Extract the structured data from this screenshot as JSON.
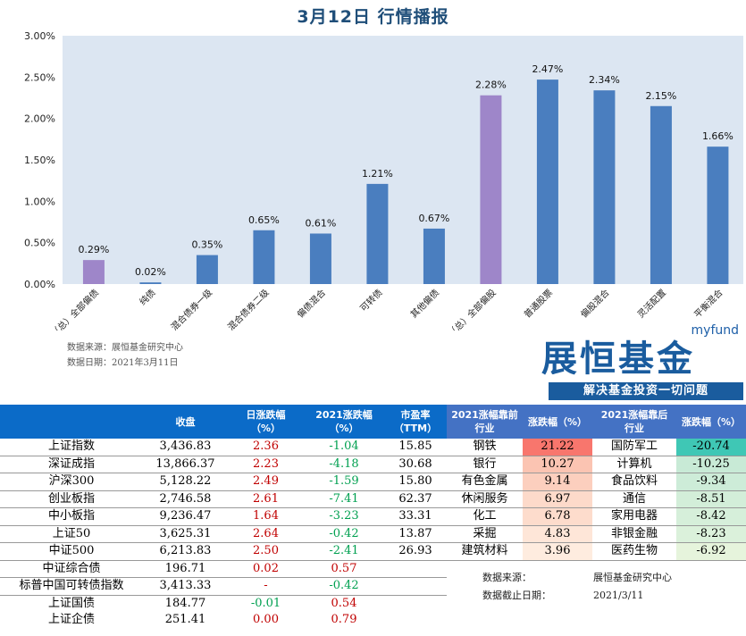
{
  "title": "3月12日  行情播报",
  "chart_data": {
    "type": "bar",
    "title": "",
    "categories": [
      "（总）全部偏债",
      "纯债",
      "混合债券一级",
      "混合债券二级",
      "偏债混合",
      "可转债",
      "其他偏债",
      "（总）全部偏股",
      "普通股票",
      "偏股混合",
      "灵活配置",
      "平衡混合"
    ],
    "values": [
      0.29,
      0.02,
      0.35,
      0.65,
      0.61,
      1.21,
      0.67,
      2.28,
      2.47,
      2.34,
      2.15,
      1.66
    ],
    "data_labels": [
      "0.29%",
      "0.02%",
      "0.35%",
      "0.65%",
      "0.61%",
      "1.21%",
      "0.67%",
      "2.28%",
      "2.47%",
      "2.34%",
      "2.15%",
      "1.66%"
    ],
    "bar_colors": [
      "#9e86c9",
      "#4a7ebf",
      "#4a7ebf",
      "#4a7ebf",
      "#4a7ebf",
      "#4a7ebf",
      "#4a7ebf",
      "#9e86c9",
      "#4a7ebf",
      "#4a7ebf",
      "#4a7ebf",
      "#4a7ebf"
    ],
    "yticks": [
      "0.00%",
      "0.50%",
      "1.00%",
      "1.50%",
      "2.00%",
      "2.50%",
      "3.00%"
    ],
    "ylim": [
      0,
      3
    ],
    "ylabel": "",
    "xlabel": "",
    "plot_bg": "#dce6f2",
    "grid": false
  },
  "notes": {
    "source": "数据来源：展恒基金研究中心",
    "date": "数据日期：2021年3月11日"
  },
  "logo": {
    "brand_en": "myfund",
    "brand_cn": "展恒基金",
    "slogan": "解决基金投资一切问题"
  },
  "index_table": {
    "headers": [
      "",
      "收盘",
      "日涨跌幅\n（%）",
      "2021涨跌幅\n（%）",
      "市盈率\n（TTM）"
    ],
    "rows": [
      [
        "上证指数",
        "3,436.83",
        "2.36",
        "-1.04",
        "15.85"
      ],
      [
        "深证成指",
        "13,866.37",
        "2.23",
        "-4.18",
        "30.68"
      ],
      [
        "沪深300",
        "5,128.22",
        "2.49",
        "-1.59",
        "15.80"
      ],
      [
        "创业板指",
        "2,746.58",
        "2.61",
        "-7.41",
        "62.37"
      ],
      [
        "中小板指",
        "9,236.47",
        "1.64",
        "-3.23",
        "33.31"
      ],
      [
        "上证50",
        "3,625.31",
        "2.64",
        "-0.42",
        "13.87"
      ],
      [
        "中证500",
        "6,213.83",
        "2.50",
        "-2.41",
        "26.93"
      ],
      [
        "中证综合债",
        "196.71",
        "0.02",
        "0.57",
        ""
      ],
      [
        "标普中国可转债指数",
        "3,413.33",
        "-",
        "-0.42",
        ""
      ],
      [
        "上证国债",
        "184.77",
        "-0.01",
        "0.54",
        ""
      ],
      [
        "上证企债",
        "251.41",
        "0.00",
        "0.79",
        ""
      ]
    ]
  },
  "industry_table": {
    "headers": [
      "2021涨幅靠前\n行业",
      "涨跌幅（%）",
      "2021涨幅靠后\n行业",
      "涨跌幅（%）"
    ],
    "rows": [
      [
        "钢铁",
        "21.22",
        "国防军工",
        "-20.74"
      ],
      [
        "银行",
        "10.27",
        "计算机",
        "-10.25"
      ],
      [
        "有色金属",
        "9.14",
        "食品饮料",
        "-9.34"
      ],
      [
        "休闲服务",
        "6.97",
        "通信",
        "-8.51"
      ],
      [
        "化工",
        "6.78",
        "家用电器",
        "-8.42"
      ],
      [
        "采掘",
        "4.83",
        "非银金融",
        "-8.23"
      ],
      [
        "建筑材料",
        "3.96",
        "医药生物",
        "-6.92"
      ]
    ],
    "top_colors": [
      "#f8766d",
      "#fbc4b2",
      "#fccfbe",
      "#fddaca",
      "#fddccc",
      "#fee6d8",
      "#feecdf"
    ],
    "bottom_colors": [
      "#3fc7b5",
      "#c8ead6",
      "#cdecd8",
      "#d3eed9",
      "#d6efda",
      "#dbf1db",
      "#e6f4dc"
    ],
    "source_label": "数据来源：",
    "source_value": "展恒基金研究中心",
    "date_label": "数据截止日期：",
    "date_value": "2021/3/11"
  }
}
